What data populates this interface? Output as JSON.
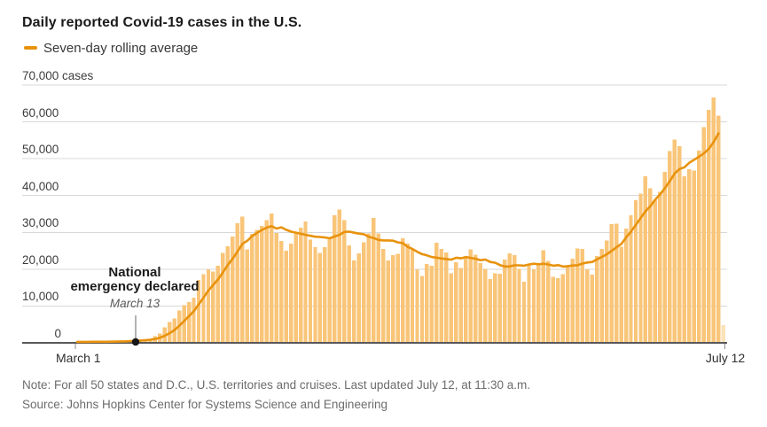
{
  "header": {
    "title": "Daily reported Covid-19 cases in the U.S.",
    "legend_label": "Seven-day rolling average"
  },
  "colors": {
    "bar": "#f9c579",
    "bar_partial": "#fbe2b9",
    "line": "#e8920d",
    "grid": "#d8d8d8",
    "axis": "#59595b",
    "axis_tick": "#919191",
    "dot": "#161616",
    "annotation_tick": "#666666"
  },
  "chart_data": {
    "type": "bar",
    "title": "Daily reported Covid-19 cases in the U.S.",
    "bar_series_name": "Daily reported cases",
    "line_series_name": "Seven-day rolling average",
    "x_start_label": "March 1",
    "x_end_label": "July 12",
    "ylim": [
      0,
      70000
    ],
    "ytick_values": [
      0,
      10000,
      20000,
      30000,
      40000,
      50000,
      60000,
      70000
    ],
    "ytick_labels": [
      "0",
      "10,000",
      "20,000",
      "30,000",
      "40,000",
      "50,000",
      "60,000",
      "70,000 cases"
    ],
    "grid": "horizontal",
    "legend_position": "top-left",
    "daily_values": [
      23,
      19,
      33,
      77,
      65,
      105,
      95,
      122,
      183,
      287,
      351,
      511,
      587,
      644,
      772,
      1133,
      1789,
      2586,
      4227,
      5594,
      6660,
      8821,
      10168,
      11075,
      12226,
      17050,
      18695,
      19979,
      19408,
      20921,
      24450,
      26211,
      28819,
      32425,
      34272,
      25398,
      29595,
      30613,
      31709,
      33323,
      35098,
      29861,
      27620,
      25023,
      26922,
      29916,
      31281,
      32922,
      28065,
      25995,
      24385,
      25985,
      28580,
      34617,
      36188,
      33318,
      26509,
      22412,
      24315,
      27327,
      29763,
      33955,
      29744,
      25501,
      22335,
      23841,
      24128,
      28369,
      26906,
      25621,
      19965,
      18117,
      21467,
      20869,
      27143,
      25508,
      24487,
      18873,
      21841,
      20289,
      23285,
      25434,
      23977,
      21675,
      20087,
      17342,
      18910,
      18721,
      22571,
      24266,
      23814,
      20058,
      16571,
      21402,
      19936,
      21697,
      25176,
      22302,
      17919,
      17598,
      18657,
      20871,
      22834,
      25639,
      25540,
      19920,
      18577,
      23631,
      25501,
      27762,
      32218,
      32411,
      26079,
      31069,
      34700,
      38672,
      40588,
      45255,
      41964,
      38673,
      41075,
      46374,
      52048,
      55220,
      53448,
      45255,
      47161,
      46790,
      52208,
      58611,
      63247,
      66627,
      61719,
      4800
    ],
    "last_bar_partial": true,
    "rolling_average_excludes_last_day": true,
    "annotation": {
      "title_line1": "National",
      "title_line2": "emergency declared",
      "date_label": "March 13",
      "date_index": 12
    }
  },
  "footer": {
    "note": "Note: For all 50 states and D.C., U.S. territories and cruises. Last updated July 12, at 11:30 a.m.",
    "source": "Source: Johns Hopkins Center for Systems Science and Engineering"
  }
}
